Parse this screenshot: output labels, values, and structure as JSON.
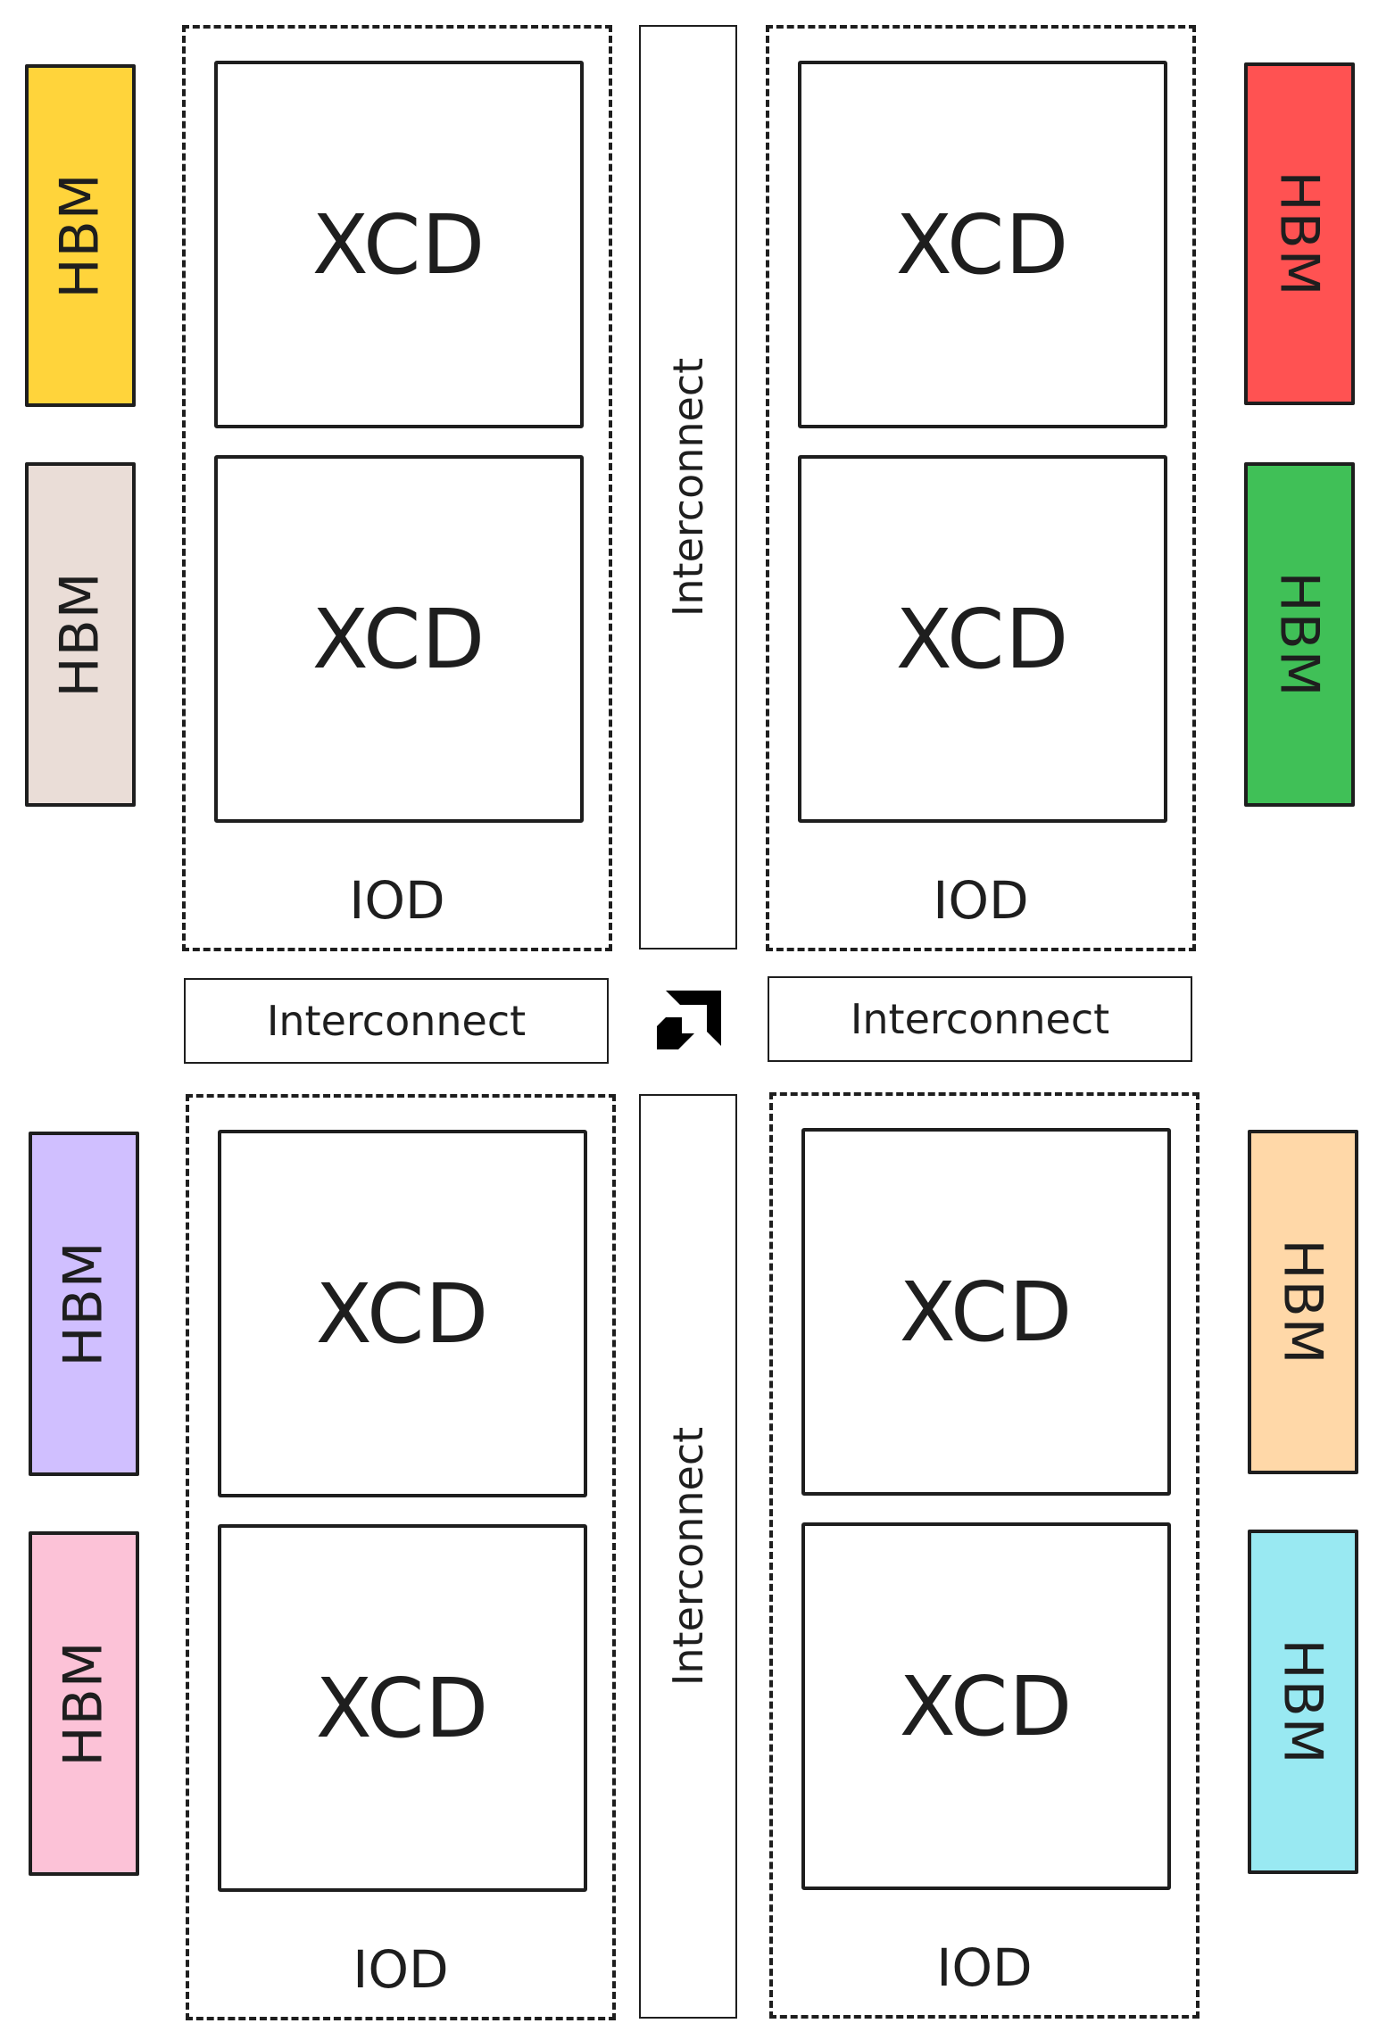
{
  "hbm_label": "HBM",
  "xcd_label": "XCD",
  "iod_label": "IOD",
  "interconnect_label": "Interconnect",
  "hbm_stacks": [
    {
      "side": "left",
      "color": "#ffd43b"
    },
    {
      "side": "left",
      "color": "#eaddd7"
    },
    {
      "side": "right",
      "color": "#ff5252"
    },
    {
      "side": "right",
      "color": "#40c057"
    },
    {
      "side": "left",
      "color": "#d0bfff"
    },
    {
      "side": "left",
      "color": "#fcc2d7"
    },
    {
      "side": "right",
      "color": "#ffd8a8"
    },
    {
      "side": "right",
      "color": "#99e9f2"
    }
  ],
  "logo": {
    "icon": "amd-logo-icon",
    "color": "#000000"
  }
}
